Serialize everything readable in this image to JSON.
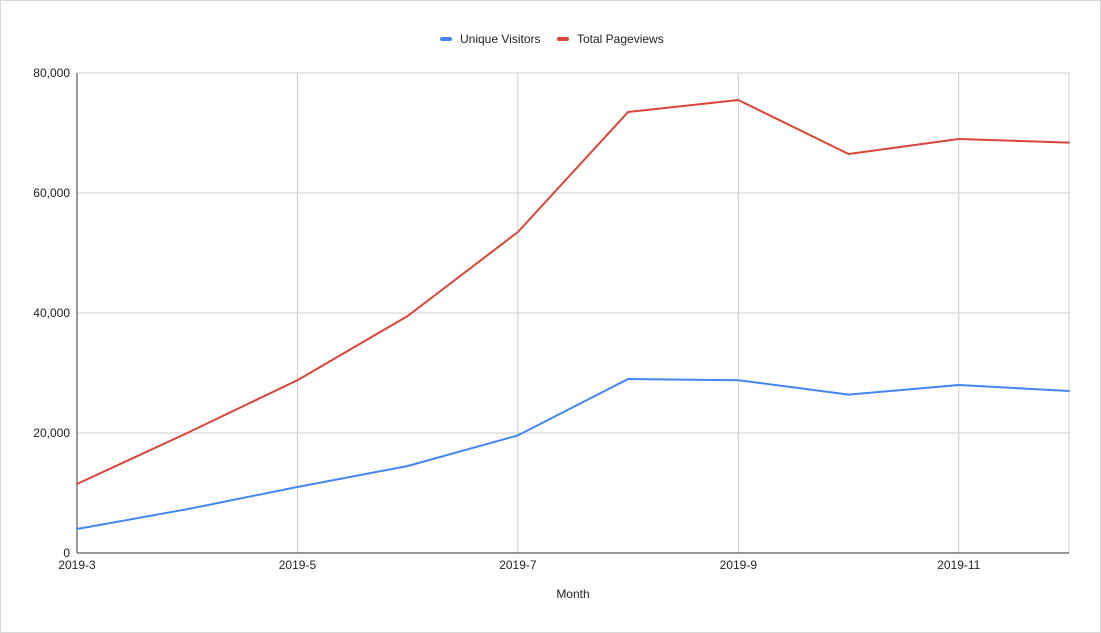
{
  "chart_data": {
    "type": "line",
    "title": "",
    "xlabel": "Month",
    "ylabel": "",
    "x": [
      "2019-3",
      "2019-4",
      "2019-5",
      "2019-6",
      "2019-7",
      "2019-8",
      "2019-9",
      "2019-10",
      "2019-11",
      "2019-12"
    ],
    "x_tick_labels": [
      "2019-3",
      "2019-5",
      "2019-7",
      "2019-9",
      "2019-11"
    ],
    "ylim": [
      0,
      80000
    ],
    "y_tick_labels": [
      "0",
      "20,000",
      "40,000",
      "60,000",
      "80,000"
    ],
    "y_ticks": [
      0,
      20000,
      40000,
      60000,
      80000
    ],
    "grid": true,
    "legend_position": "top-center",
    "series": [
      {
        "name": "Unique Visitors",
        "color": "#4285f4",
        "values": [
          4000,
          7300,
          11000,
          14500,
          19600,
          29000,
          28800,
          26400,
          28000,
          27000
        ]
      },
      {
        "name": "Total Pageviews",
        "color": "#db4437",
        "values": [
          11500,
          20000,
          28800,
          39500,
          53500,
          73500,
          75500,
          66500,
          69000,
          68400
        ]
      }
    ]
  }
}
